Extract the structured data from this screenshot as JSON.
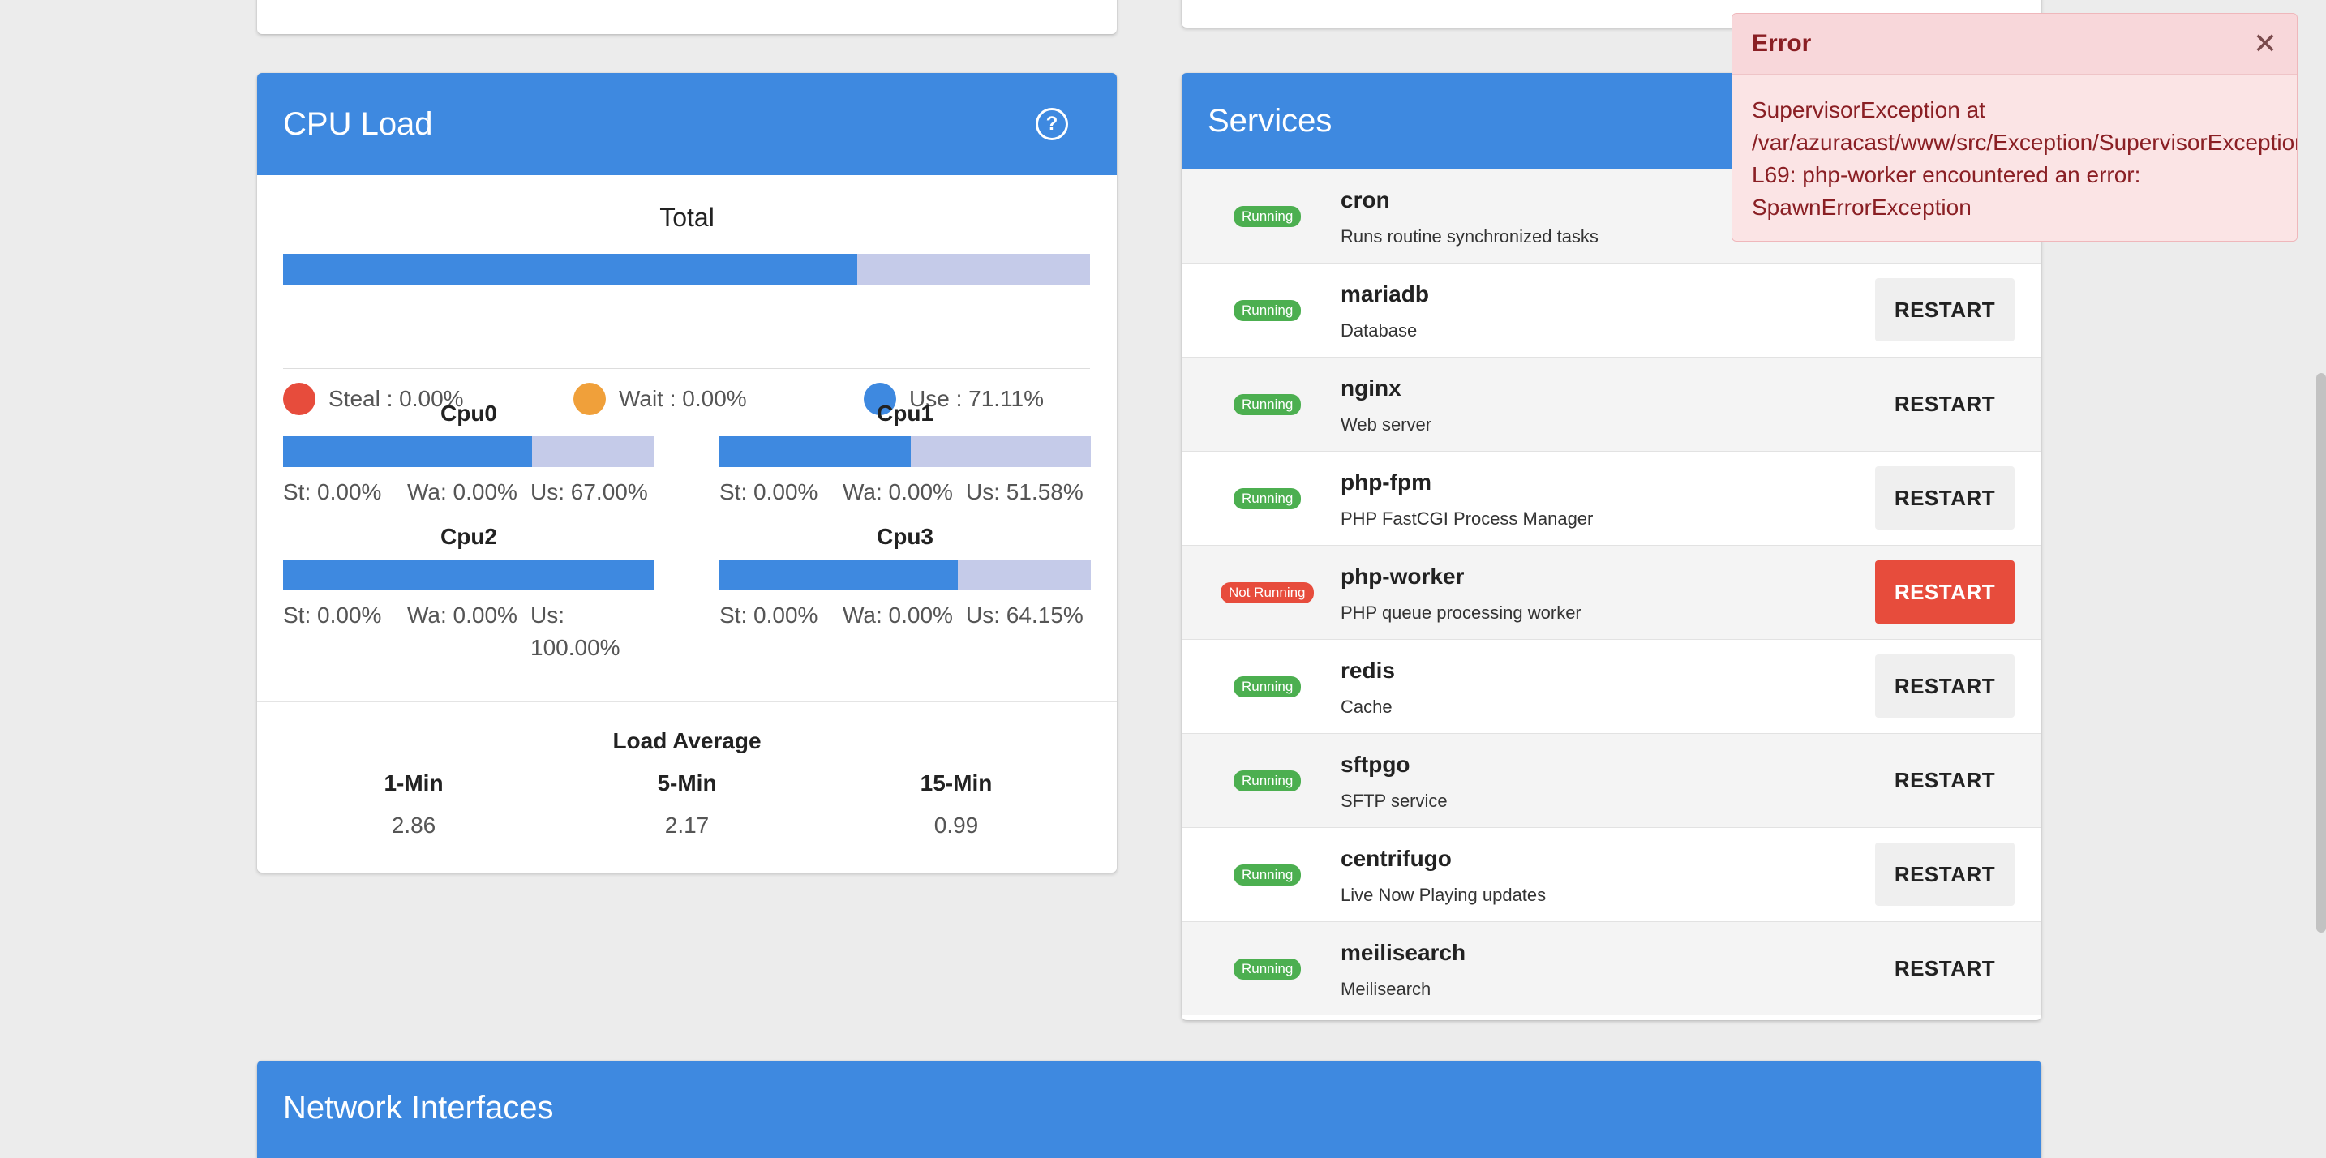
{
  "colors": {
    "primary": "#3e89e0",
    "steal": "#e74c3c",
    "wait": "#f0a03a",
    "use": "#3e89e0",
    "running": "#4caf50",
    "not_running": "#e74c3c",
    "bar_bg": "#c5cbe9"
  },
  "cpu_load": {
    "title": "CPU Load",
    "help_icon": "question-circle-icon",
    "help_glyph": "?",
    "total_title": "Total",
    "total_use_percent": 71.11,
    "legend": {
      "steal": "Steal : 0.00%",
      "wait": "Wait : 0.00%",
      "use": "Use : 71.11%"
    },
    "cores": [
      {
        "name": "Cpu0",
        "use_percent": 67.0,
        "st": "St: 0.00%",
        "wa": "Wa: 0.00%",
        "us": "Us: 67.00%"
      },
      {
        "name": "Cpu1",
        "use_percent": 51.58,
        "st": "St: 0.00%",
        "wa": "Wa: 0.00%",
        "us": "Us: 51.58%"
      },
      {
        "name": "Cpu2",
        "use_percent": 100.0,
        "st": "St: 0.00%",
        "wa": "Wa: 0.00%",
        "us_line1": "Us:",
        "us_line2": "100.00%"
      },
      {
        "name": "Cpu3",
        "use_percent": 64.15,
        "st": "St: 0.00%",
        "wa": "Wa: 0.00%",
        "us": "Us: 64.15%"
      }
    ],
    "load_average": {
      "title": "Load Average",
      "cols": [
        {
          "label": "1-Min",
          "value": "2.86"
        },
        {
          "label": "5-Min",
          "value": "2.17"
        },
        {
          "label": "15-Min",
          "value": "0.99"
        }
      ]
    }
  },
  "services": {
    "title": "Services",
    "restart_label": "RESTART",
    "items": [
      {
        "name": "cron",
        "desc": "Runs routine synchronized tasks",
        "status": "Running"
      },
      {
        "name": "mariadb",
        "desc": "Database",
        "status": "Running"
      },
      {
        "name": "nginx",
        "desc": "Web server",
        "status": "Running"
      },
      {
        "name": "php-fpm",
        "desc": "PHP FastCGI Process Manager",
        "status": "Running"
      },
      {
        "name": "php-worker",
        "desc": "PHP queue processing worker",
        "status": "Not Running"
      },
      {
        "name": "redis",
        "desc": "Cache",
        "status": "Running"
      },
      {
        "name": "sftpgo",
        "desc": "SFTP service",
        "status": "Running"
      },
      {
        "name": "centrifugo",
        "desc": "Live Now Playing updates",
        "status": "Running"
      },
      {
        "name": "meilisearch",
        "desc": "Meilisearch",
        "status": "Running"
      }
    ]
  },
  "network": {
    "title": "Network Interfaces"
  },
  "error_toast": {
    "title": "Error",
    "close_glyph": "✕",
    "line1": "SupervisorException at",
    "line2": "/var/azuracast/www/src/Exception/SupervisorException.php",
    "line3": "L69: php-worker encountered an error:",
    "line4": "SpawnErrorException"
  }
}
